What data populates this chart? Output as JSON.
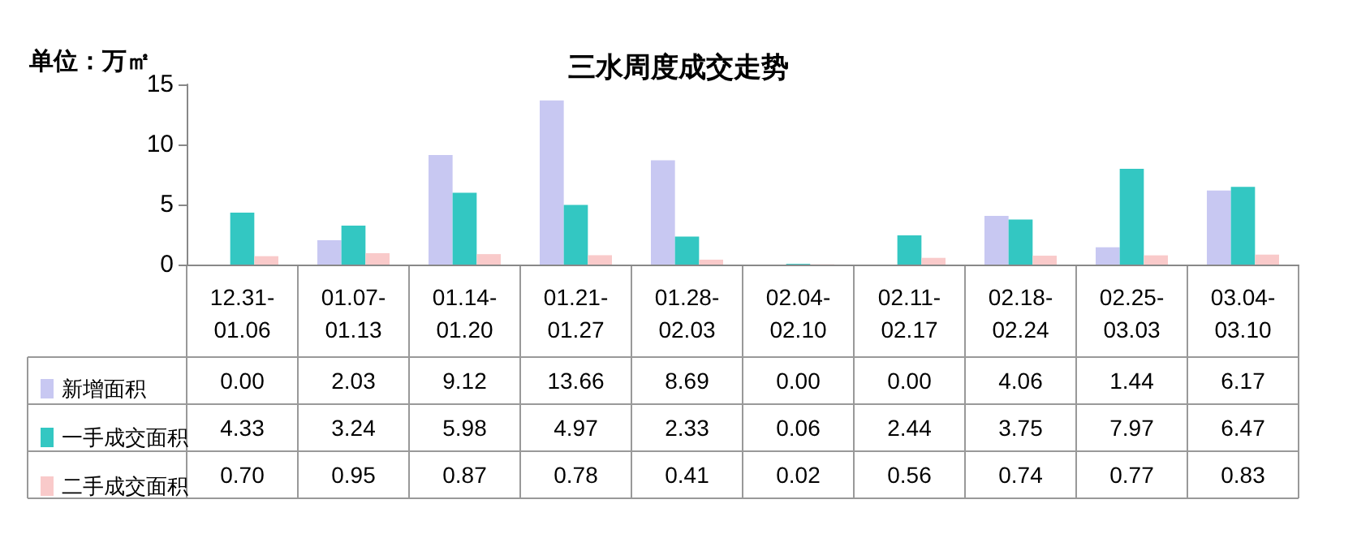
{
  "chart_data": {
    "type": "bar",
    "title": "三水周度成交走势",
    "ylabel": "单位：万㎡",
    "categories": [
      "12.31-\n01.06",
      "01.07-\n01.13",
      "01.14-\n01.20",
      "01.21-\n01.27",
      "01.28-\n02.03",
      "02.04-\n02.10",
      "02.11-\n02.17",
      "02.18-\n02.24",
      "02.25-\n03.03",
      "03.04-\n03.10"
    ],
    "series": [
      {
        "name": "新增面积",
        "color": "#c8c8f2",
        "values": [
          0,
          2.03,
          9.12,
          13.66,
          8.69,
          0,
          0,
          4.06,
          1.44,
          6.17
        ],
        "value_labels": [
          "0.00",
          "2.03",
          "9.12",
          "13.66",
          "8.69",
          "0.00",
          "0.00",
          "4.06",
          "1.44",
          "6.17"
        ]
      },
      {
        "name": "一手成交面积",
        "color": "#33c7c2",
        "values": [
          4.33,
          3.24,
          5.98,
          4.97,
          2.33,
          0.06,
          2.44,
          3.75,
          7.97,
          6.47
        ],
        "value_labels": [
          "4.33",
          "3.24",
          "5.98",
          "4.97",
          "2.33",
          "0.06",
          "2.44",
          "3.75",
          "7.97",
          "6.47"
        ]
      },
      {
        "name": "二手成交面积",
        "color": "#f9caca",
        "values": [
          0.7,
          0.95,
          0.87,
          0.78,
          0.41,
          0.02,
          0.56,
          0.74,
          0.77,
          0.83
        ],
        "value_labels": [
          "0.70",
          "0.95",
          "0.87",
          "0.78",
          "0.41",
          "0.02",
          "0.56",
          "0.74",
          "0.77",
          "0.83"
        ]
      }
    ],
    "ylim": [
      0,
      15
    ],
    "yticks": [
      0,
      5,
      10,
      15
    ],
    "grid": false,
    "legend": "bottom left"
  }
}
